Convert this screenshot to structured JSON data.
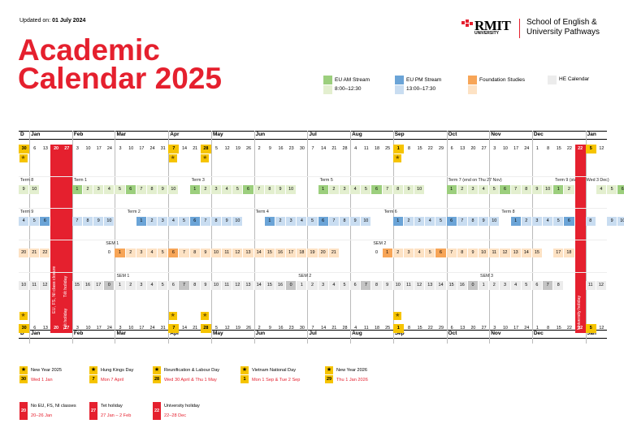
{
  "header": {
    "updated_prefix": "Updated on:",
    "updated_date": "01 July 2024",
    "title_line1": "Academic",
    "title_line2": "Calendar 2025"
  },
  "logo": {
    "brand": "RMIT",
    "sub": "UNIVERSITY",
    "school_line1": "School of English &",
    "school_line2": "University Pathways"
  },
  "legend": {
    "eu_am": "EU AM Stream",
    "eu_am_time": "8:00–12:30",
    "eu_pm": "EU PM Stream",
    "eu_pm_time": "13:00–17:30",
    "foundation": "Foundation Studies",
    "he": "HE Calendar"
  },
  "colors": {
    "red": "#e5202e",
    "green_dark": "#9ccf7d",
    "green_light": "#e3efcf",
    "blue_dark": "#6ba4d7",
    "blue_light": "#c9ddf1",
    "orange_dark": "#f7a557",
    "orange_light": "#fde2c4",
    "grey_dark": "#c4c4c4",
    "grey_light": "#ececec",
    "yellow": "#f6c400"
  },
  "months": [
    "D",
    "Jan",
    "Feb",
    "Mar",
    "Apr",
    "May",
    "Jun",
    "Jul",
    "Aug",
    "Sep",
    "Oct",
    "Nov",
    "Dec",
    "Jan"
  ],
  "week_dates": [
    "30",
    "6",
    "13",
    "20",
    "27",
    "3",
    "10",
    "17",
    "24",
    "3",
    "10",
    "17",
    "24",
    "31",
    "7",
    "14",
    "21",
    "28",
    "5",
    "12",
    "19",
    "26",
    "2",
    "9",
    "16",
    "23",
    "30",
    "7",
    "14",
    "21",
    "28",
    "4",
    "11",
    "18",
    "25",
    "1",
    "8",
    "15",
    "22",
    "29",
    "6",
    "13",
    "20",
    "27",
    "3",
    "10",
    "17",
    "24",
    "1",
    "8",
    "15",
    "22",
    "29",
    "5",
    "12"
  ],
  "terms": {
    "am": {
      "labels": [
        "Term 8",
        "Term 1",
        "Term 3",
        "Term 5",
        "Term 7 (end on Thu 27 Nov)",
        "Term 9 (start on Wed 3 Dec)"
      ]
    },
    "pm": {
      "labels": [
        "Term 9",
        "Term 2",
        "Term 4",
        "Term 6",
        "Term 8"
      ]
    },
    "fs": {
      "labels": [
        "SEM 1",
        "SEM 2"
      ]
    },
    "he": {
      "labels": [
        "SEM 1",
        "SEM 2",
        "SEM 3"
      ]
    }
  },
  "rows": {
    "am": [
      "9",
      "10",
      "",
      "",
      "",
      "1",
      "2",
      "3",
      "4",
      "5",
      "6",
      "7",
      "8",
      "9",
      "10",
      "",
      "1",
      "2",
      "3",
      "4",
      "5",
      "6",
      "7",
      "8",
      "9",
      "10",
      "",
      "",
      "1",
      "2",
      "3",
      "4",
      "5",
      "6",
      "7",
      "8",
      "9",
      "10",
      "",
      "",
      "1",
      "2",
      "3",
      "4",
      "5",
      "6",
      "7",
      "8",
      "9",
      "10",
      "1",
      "2",
      "3",
      "",
      "4",
      "5",
      "6"
    ],
    "pm": [
      "4",
      "5",
      "6",
      "",
      "",
      "7",
      "8",
      "9",
      "10",
      "",
      "",
      "1",
      "2",
      "3",
      "4",
      "5",
      "6",
      "7",
      "8",
      "9",
      "10",
      "",
      "",
      "1",
      "2",
      "3",
      "4",
      "5",
      "6",
      "7",
      "8",
      "9",
      "10",
      "",
      "",
      "1",
      "2",
      "3",
      "4",
      "5",
      "6",
      "7",
      "8",
      "9",
      "10",
      "",
      "1",
      "2",
      "3",
      "4",
      "5",
      "6",
      "7",
      "8",
      "",
      "9",
      "10"
    ],
    "fs": [
      "20",
      "21",
      "22",
      "",
      "",
      "",
      "",
      "",
      "0",
      "1",
      "2",
      "3",
      "4",
      "5",
      "6",
      "7",
      "8",
      "9",
      "10",
      "11",
      "12",
      "13",
      "14",
      "15",
      "16",
      "17",
      "18",
      "19",
      "20",
      "21",
      "",
      "",
      "",
      "0",
      "1",
      "2",
      "3",
      "4",
      "5",
      "6",
      "7",
      "8",
      "9",
      "10",
      "11",
      "12",
      "13",
      "14",
      "15",
      "",
      "17",
      "18",
      "19"
    ],
    "he": [
      "10",
      "11",
      "12",
      "13",
      "",
      "15",
      "16",
      "17",
      "0",
      "1",
      "2",
      "3",
      "4",
      "5",
      "6",
      "7",
      "8",
      "9",
      "10",
      "11",
      "12",
      "13",
      "14",
      "15",
      "16",
      "0",
      "1",
      "2",
      "3",
      "4",
      "5",
      "6",
      "7",
      "8",
      "9",
      "10",
      "11",
      "12",
      "13",
      "14",
      "15",
      "16",
      "0",
      "1",
      "2",
      "3",
      "4",
      "5",
      "6",
      "7",
      "8",
      "",
      "10",
      "11",
      "12"
    ]
  },
  "vertical": {
    "tet": "Tết holiday",
    "closed": "EU, FS, NI class closure",
    "tet2": "Tết holiday",
    "uni": "University holiday"
  },
  "keys": [
    {
      "num": "30",
      "title": "New Year 2025",
      "date": "Wed 1 Jan"
    },
    {
      "num": "7",
      "title": "Hung Kings Day",
      "date": "Mon 7 April"
    },
    {
      "num": "28",
      "title": "Reunification & Labour Day",
      "date": "Wed 30 April & Thu 1 May"
    },
    {
      "num": "1",
      "title": "Vietnam National Day",
      "date": "Mon 1 Sep & Tue 2 Sep"
    },
    {
      "num": "29",
      "title": "New Year 2026",
      "date": "Thu 1 Jan 2026"
    }
  ],
  "keys2": [
    {
      "num": "20",
      "title": "No EU, FS, NI classes",
      "date": "20–26 Jan"
    },
    {
      "num": "27",
      "title": "Tet holiday",
      "date": "27 Jan – 2 Feb"
    },
    {
      "num": "22",
      "title": "University holiday",
      "date": "22–28 Dec"
    }
  ]
}
